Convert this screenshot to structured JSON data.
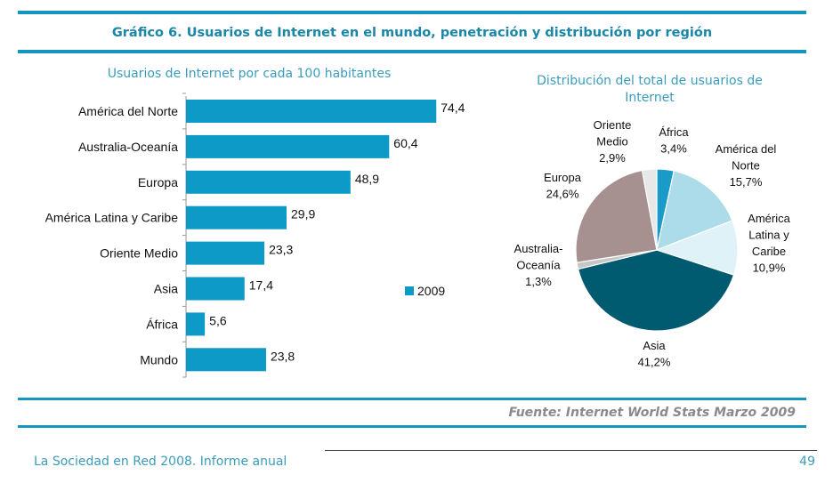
{
  "title": "Gráfico 6. Usuarios de Internet en el mundo, penetración y distribución por región",
  "source": "Fuente: Internet World Stats Marzo 2009",
  "footer": {
    "left": "La Sociedad en Red 2008. Informe anual",
    "page": "49"
  },
  "colors": {
    "accent": "#1496bf",
    "bar": "#0e9ac6"
  },
  "chart_data": [
    {
      "type": "bar",
      "orientation": "horizontal",
      "title": "Usuarios de Internet por cada 100 habitantes",
      "categories": [
        "América del Norte",
        "Australia-Oceanía",
        "Europa",
        "América Latina y Caribe",
        "Oriente Medio",
        "Asia",
        "África",
        "Mundo"
      ],
      "series": [
        {
          "name": "2009",
          "values": [
            74.4,
            60.4,
            48.9,
            29.9,
            23.3,
            17.4,
            5.6,
            23.8
          ]
        }
      ],
      "value_labels": [
        "74,4",
        "60,4",
        "48,9",
        "29,9",
        "23,3",
        "17,4",
        "5,6",
        "23,8"
      ],
      "xlim": [
        0,
        80
      ],
      "legend": "right",
      "grid": false
    },
    {
      "type": "pie",
      "title": "Distribución del total de usuarios de Internet",
      "slices": [
        {
          "label": "África",
          "value": 3.4,
          "text": "3,4%",
          "color": "#1a9ac6"
        },
        {
          "label": "América del Norte",
          "value": 15.7,
          "text": "15,7%",
          "color": "#acdcea"
        },
        {
          "label": "América Latina y Caribe",
          "value": 10.9,
          "text": "10,9%",
          "color": "#dff2f7"
        },
        {
          "label": "Asia",
          "value": 41.2,
          "text": "41,2%",
          "color": "#005a70"
        },
        {
          "label": "Australia-Oceanía",
          "value": 1.3,
          "text": "1,3%",
          "color": "#c6c6c6"
        },
        {
          "label": "Europa",
          "value": 24.6,
          "text": "24,6%",
          "color": "#a69190"
        },
        {
          "label": "Oriente Medio",
          "value": 2.9,
          "text": "2,9%",
          "color": "#e8e8e8"
        }
      ]
    }
  ]
}
